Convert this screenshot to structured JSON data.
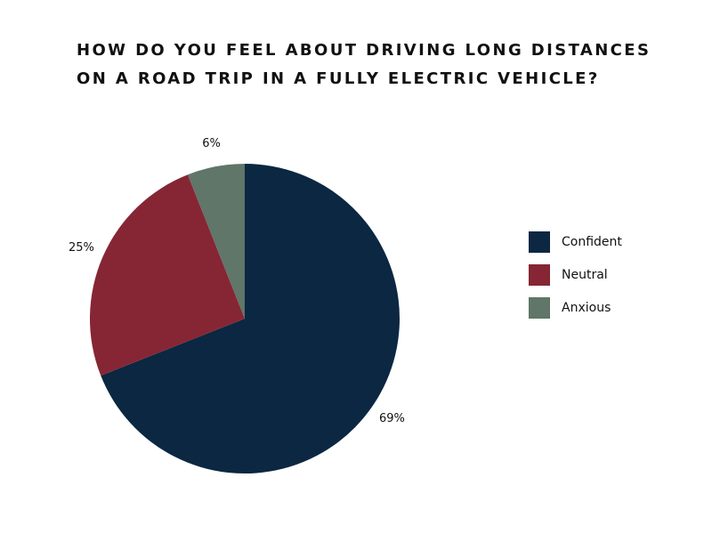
{
  "chart_data": {
    "type": "pie",
    "title": [
      "HOW DO YOU FEEL ABOUT DRIVING LONG DISTANCES",
      "ON A ROAD TRIP IN A FULLY ELECTRIC VEHICLE?"
    ],
    "categories": [
      "Confident",
      "Neutral",
      "Anxious"
    ],
    "values": [
      69,
      25,
      6
    ],
    "value_labels": [
      "69%",
      "25%",
      "6%"
    ],
    "colors": [
      "#0b2742",
      "#862634",
      "#5f7668"
    ],
    "legend": "right"
  }
}
